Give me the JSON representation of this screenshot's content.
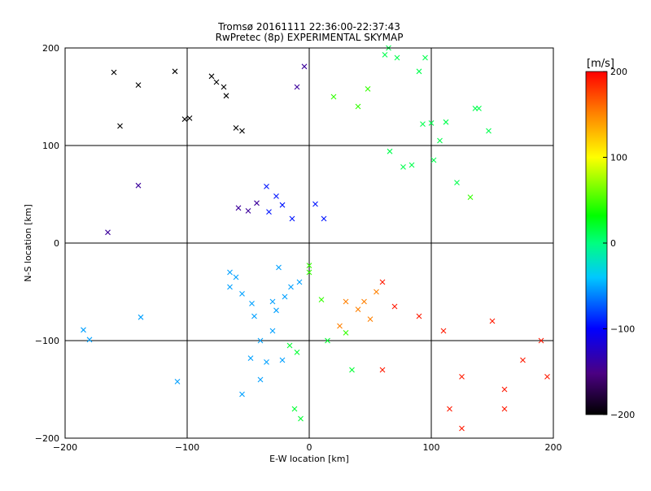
{
  "chart_data": {
    "type": "scatter",
    "title": "Tromsø 20161111 22:36:00-22:37:43",
    "subtitle": "RwPretec (8p) EXPERIMENTAL SKYMAP",
    "xlabel": "E-W location [km]",
    "ylabel": "N-S location [km]",
    "xlim": [
      -200,
      200
    ],
    "ylim": [
      -200,
      200
    ],
    "xticks": [
      -200,
      -100,
      0,
      100,
      200
    ],
    "yticks": [
      -200,
      -100,
      0,
      100,
      200
    ],
    "xtick_labels": [
      "−200",
      "−100",
      "0",
      "100",
      "200"
    ],
    "ytick_labels": [
      "−200",
      "−100",
      "0",
      "100",
      "200"
    ],
    "grid": true,
    "colorbar": {
      "label": "[m/s]",
      "min": -200,
      "max": 200,
      "ticks": [
        200,
        100,
        0,
        -100,
        -200
      ],
      "tick_labels": [
        "200",
        "100",
        "0",
        "−100",
        "−200"
      ],
      "colormap": [
        "#000000",
        "#4b0082",
        "#0000ff",
        "#00c8ff",
        "#00ff80",
        "#00ff00",
        "#ffff00",
        "#ff8000",
        "#ff0000"
      ]
    },
    "series": [
      {
        "marker": "cross",
        "points": [
          [
            -160,
            175
          ],
          [
            -110,
            176
          ],
          [
            -140,
            162
          ],
          [
            -155,
            120
          ],
          [
            -80,
            171
          ],
          [
            -76,
            165
          ],
          [
            -70,
            160
          ],
          [
            -68,
            151
          ],
          [
            -98,
            128
          ],
          [
            -102,
            127
          ],
          [
            -140,
            59
          ],
          [
            -165,
            11
          ],
          [
            -138,
            -76
          ],
          [
            -185,
            -89
          ],
          [
            -180,
            -99
          ],
          [
            -108,
            -142
          ],
          [
            90,
            176
          ],
          [
            112,
            124
          ],
          [
            93,
            122
          ],
          [
            100,
            123
          ],
          [
            72,
            190
          ],
          [
            62,
            193
          ],
          [
            48,
            158
          ],
          [
            -10,
            160
          ],
          [
            -4,
            181
          ],
          [
            -60,
            118
          ],
          [
            -55,
            115
          ],
          [
            5,
            40
          ],
          [
            12,
            25
          ],
          [
            0,
            -23
          ],
          [
            -25,
            -25
          ],
          [
            -30,
            -60
          ],
          [
            -20,
            -55
          ],
          [
            -47,
            -62
          ],
          [
            -55,
            -52
          ],
          [
            -65,
            -45
          ],
          [
            -60,
            -35
          ],
          [
            -15,
            -45
          ],
          [
            -27,
            -69
          ],
          [
            -45,
            -75
          ],
          [
            -55,
            -155
          ],
          [
            -10,
            -112
          ],
          [
            45,
            -60
          ],
          [
            55,
            -50
          ],
          [
            60,
            -40
          ],
          [
            70,
            -65
          ],
          [
            90,
            -75
          ],
          [
            110,
            -90
          ],
          [
            150,
            -80
          ],
          [
            175,
            -120
          ],
          [
            195,
            -137
          ],
          [
            160,
            -170
          ],
          [
            125,
            -190
          ],
          [
            115,
            -170
          ],
          [
            -22,
            -120
          ],
          [
            -35,
            -122
          ],
          [
            -40,
            -140
          ],
          [
            -16,
            -105
          ],
          [
            15,
            -100
          ],
          [
            30,
            -92
          ],
          [
            65,
            200
          ],
          [
            95,
            190
          ],
          [
            136,
            138
          ],
          [
            139,
            138
          ],
          [
            121,
            62
          ],
          [
            132,
            47
          ],
          [
            84,
            80
          ],
          [
            66,
            94
          ],
          [
            77,
            78
          ],
          [
            -27,
            48
          ],
          [
            -50,
            33
          ],
          [
            -22,
            39
          ],
          [
            -33,
            32
          ],
          [
            -65,
            -30
          ],
          [
            -8,
            -40
          ],
          [
            10,
            -58
          ],
          [
            30,
            -60
          ],
          [
            40,
            -68
          ],
          [
            25,
            -85
          ],
          [
            50,
            -78
          ],
          [
            102,
            85
          ],
          [
            107,
            105
          ],
          [
            147,
            115
          ],
          [
            20,
            150
          ],
          [
            40,
            140
          ],
          [
            -35,
            58
          ],
          [
            -58,
            36
          ],
          [
            -43,
            41
          ],
          [
            -14,
            25
          ],
          [
            0,
            -30
          ],
          [
            35,
            -130
          ],
          [
            60,
            -130
          ],
          [
            125,
            -137
          ],
          [
            160,
            -150
          ],
          [
            190,
            -100
          ],
          [
            -30,
            -90
          ],
          [
            -40,
            -100
          ],
          [
            -48,
            -118
          ],
          [
            -12,
            -170
          ],
          [
            -7,
            -180
          ]
        ]
      }
    ]
  }
}
